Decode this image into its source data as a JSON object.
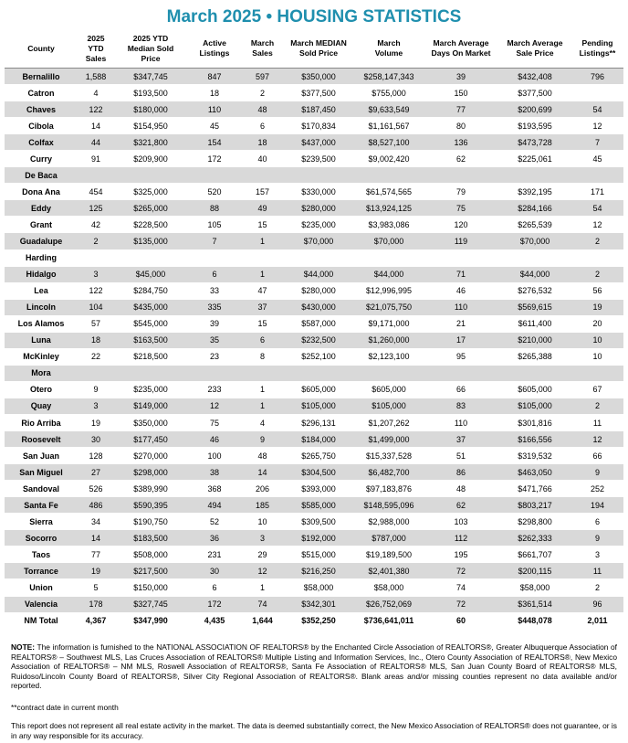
{
  "header": {
    "title": "March 2025 • HOUSING STATISTICS"
  },
  "table": {
    "columns": [
      "County",
      "2025\nYTD\nSales",
      "2025 YTD\nMedian Sold\nPrice",
      "Active\nListings",
      "March\nSales",
      "March MEDIAN\nSold Price",
      "March\nVolume",
      "March Average\nDays On Market",
      "March Average\nSale Price",
      "Pending\nListings**"
    ],
    "rows": [
      [
        "Bernalillo",
        "1,588",
        "$347,745",
        "847",
        "597",
        "$350,000",
        "$258,147,343",
        "39",
        "$432,408",
        "796"
      ],
      [
        "Catron",
        "4",
        "$193,500",
        "18",
        "2",
        "$377,500",
        "$755,000",
        "150",
        "$377,500",
        null
      ],
      [
        "Chaves",
        "122",
        "$180,000",
        "110",
        "48",
        "$187,450",
        "$9,633,549",
        "77",
        "$200,699",
        "54"
      ],
      [
        "Cibola",
        "14",
        "$154,950",
        "45",
        "6",
        "$170,834",
        "$1,161,567",
        "80",
        "$193,595",
        "12"
      ],
      [
        "Colfax",
        "44",
        "$321,800",
        "154",
        "18",
        "$437,000",
        "$8,527,100",
        "136",
        "$473,728",
        "7"
      ],
      [
        "Curry",
        "91",
        "$209,900",
        "172",
        "40",
        "$239,500",
        "$9,002,420",
        "62",
        "$225,061",
        "45"
      ],
      [
        "De Baca"
      ],
      [
        "Dona Ana",
        "454",
        "$325,000",
        "520",
        "157",
        "$330,000",
        "$61,574,565",
        "79",
        "$392,195",
        "171"
      ],
      [
        "Eddy",
        "125",
        "$265,000",
        "88",
        "49",
        "$280,000",
        "$13,924,125",
        "75",
        "$284,166",
        "54"
      ],
      [
        "Grant",
        "42",
        "$228,500",
        "105",
        "15",
        "$235,000",
        "$3,983,086",
        "120",
        "$265,539",
        "12"
      ],
      [
        "Guadalupe",
        "2",
        "$135,000",
        "7",
        "1",
        "$70,000",
        "$70,000",
        "119",
        "$70,000",
        "2"
      ],
      [
        "Harding"
      ],
      [
        "Hidalgo",
        "3",
        "$45,000",
        "6",
        "1",
        "$44,000",
        "$44,000",
        "71",
        "$44,000",
        "2"
      ],
      [
        "Lea",
        "122",
        "$284,750",
        "33",
        "47",
        "$280,000",
        "$12,996,995",
        "46",
        "$276,532",
        "56"
      ],
      [
        "Lincoln",
        "104",
        "$435,000",
        "335",
        "37",
        "$430,000",
        "$21,075,750",
        "110",
        "$569,615",
        "19"
      ],
      [
        "Los Alamos",
        "57",
        "$545,000",
        "39",
        "15",
        "$587,000",
        "$9,171,000",
        "21",
        "$611,400",
        "20"
      ],
      [
        "Luna",
        "18",
        "$163,500",
        "35",
        "6",
        "$232,500",
        "$1,260,000",
        "17",
        "$210,000",
        "10"
      ],
      [
        "McKinley",
        "22",
        "$218,500",
        "23",
        "8",
        "$252,100",
        "$2,123,100",
        "95",
        "$265,388",
        "10"
      ],
      [
        "Mora"
      ],
      [
        "Otero",
        "9",
        "$235,000",
        "233",
        "1",
        "$605,000",
        "$605,000",
        "66",
        "$605,000",
        "67"
      ],
      [
        "Quay",
        "3",
        "$149,000",
        "12",
        "1",
        "$105,000",
        "$105,000",
        "83",
        "$105,000",
        "2"
      ],
      [
        "Rio Arriba",
        "19",
        "$350,000",
        "75",
        "4",
        "$296,131",
        "$1,207,262",
        "110",
        "$301,816",
        "11"
      ],
      [
        "Roosevelt",
        "30",
        "$177,450",
        "46",
        "9",
        "$184,000",
        "$1,499,000",
        "37",
        "$166,556",
        "12"
      ],
      [
        "San Juan",
        "128",
        "$270,000",
        "100",
        "48",
        "$265,750",
        "$15,337,528",
        "51",
        "$319,532",
        "66"
      ],
      [
        "San Miguel",
        "27",
        "$298,000",
        "38",
        "14",
        "$304,500",
        "$6,482,700",
        "86",
        "$463,050",
        "9"
      ],
      [
        "Sandoval",
        "526",
        "$389,990",
        "368",
        "206",
        "$393,000",
        "$97,183,876",
        "48",
        "$471,766",
        "252"
      ],
      [
        "Santa Fe",
        "486",
        "$590,395",
        "494",
        "185",
        "$585,000",
        "$148,595,096",
        "62",
        "$803,217",
        "194"
      ],
      [
        "Sierra",
        "34",
        "$190,750",
        "52",
        "10",
        "$309,500",
        "$2,988,000",
        "103",
        "$298,800",
        "6"
      ],
      [
        "Socorro",
        "14",
        "$183,500",
        "36",
        "3",
        "$192,000",
        "$787,000",
        "112",
        "$262,333",
        "9"
      ],
      [
        "Taos",
        "77",
        "$508,000",
        "231",
        "29",
        "$515,000",
        "$19,189,500",
        "195",
        "$661,707",
        "3"
      ],
      [
        "Torrance",
        "19",
        "$217,500",
        "30",
        "12",
        "$216,250",
        "$2,401,380",
        "72",
        "$200,115",
        "11"
      ],
      [
        "Union",
        "5",
        "$150,000",
        "6",
        "1",
        "$58,000",
        "$58,000",
        "74",
        "$58,000",
        "2"
      ],
      [
        "Valencia",
        "178",
        "$327,745",
        "172",
        "74",
        "$342,301",
        "$26,752,069",
        "72",
        "$361,514",
        "96"
      ]
    ],
    "total": [
      "NM Total",
      "4,367",
      "$347,990",
      "4,435",
      "1,644",
      "$352,250",
      "$736,641,011",
      "60",
      "$448,078",
      "2,011"
    ]
  },
  "notes": {
    "note_label": "NOTE:",
    "note": "The information is furnished to the NATIONAL ASSOCIATION OF REALTORS® by the Enchanted Circle Association of REALTORS®, Greater Albuquerque Association of REALTORS® – Southwest MLS, Las Cruces Association of REALTORS® Multiple Listing and Information Services, Inc., Otero County Association of REALTORS®, New Mexico Association of REALTORS® – NM MLS, Roswell Association of REALTORS®, Santa Fe Association of REALTORS® MLS, San Juan County Board of REALTORS® MLS, Ruidoso/Lincoln County Board of REALTORS®, Silver City Regional Association of REALTORS®. Blank areas and/or missing counties represent no data available and/or reported.",
    "contract": "**contract date in current month",
    "disclaimer": "This report does not represent all real estate activity in the market. The data is deemed substantially correct, the New Mexico Association of REALTORS® does not guarantee, or is in any way responsible for its accuracy."
  }
}
